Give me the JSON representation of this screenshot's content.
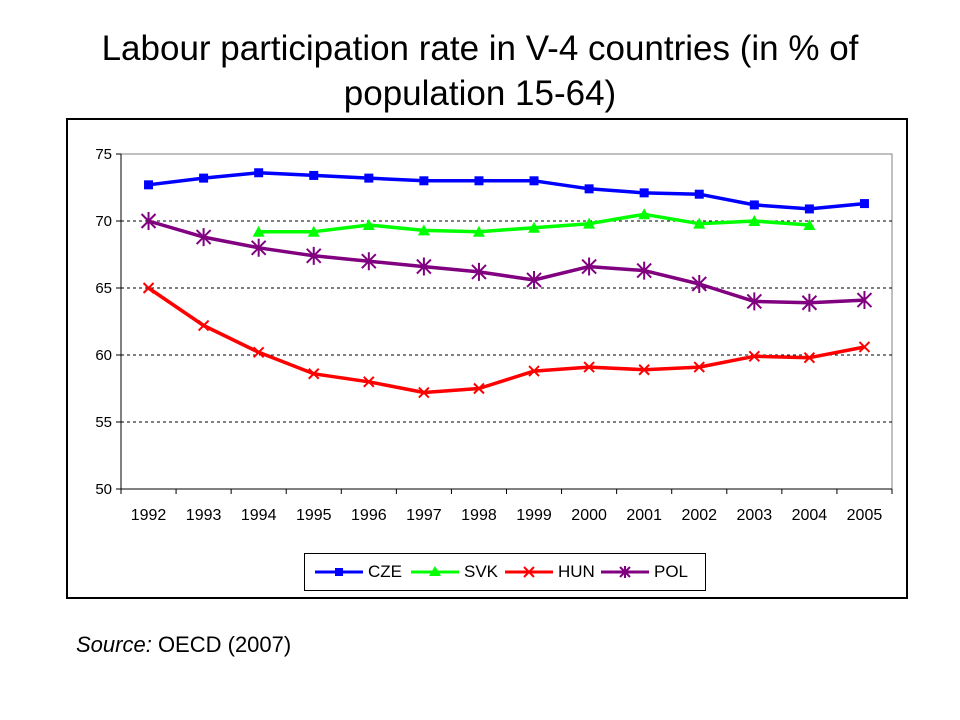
{
  "title": "Labour participation rate in V-4 countries (in % of population 15-64)",
  "source": {
    "label": "Source:",
    "text": " OECD (2007)"
  },
  "chart_data": {
    "type": "line",
    "title": "Labour participation rate in V-4 countries (in % of population 15-64)",
    "xlabel": "",
    "ylabel": "",
    "categories": [
      "1992",
      "1993",
      "1994",
      "1995",
      "1996",
      "1997",
      "1998",
      "1999",
      "2000",
      "2001",
      "2002",
      "2003",
      "2004",
      "2005"
    ],
    "ylim": [
      50,
      75
    ],
    "yticks": [
      50,
      55,
      60,
      65,
      70,
      75
    ],
    "grid": "horizontal dashed",
    "legend_position": "bottom",
    "series": [
      {
        "name": "CZE",
        "color": "#0000ff",
        "marker": "square",
        "values": [
          72.7,
          73.2,
          73.6,
          73.4,
          73.2,
          73.0,
          73.0,
          73.0,
          72.4,
          72.1,
          72.0,
          71.2,
          70.9,
          71.3
        ]
      },
      {
        "name": "SVK",
        "color": "#00ff00",
        "marker": "triangle",
        "values": [
          null,
          null,
          69.2,
          69.2,
          69.7,
          69.3,
          69.2,
          69.5,
          69.8,
          70.5,
          69.8,
          70.0,
          69.7,
          null
        ]
      },
      {
        "name": "HUN",
        "color": "#ff0000",
        "marker": "x",
        "values": [
          65.0,
          62.2,
          60.2,
          58.6,
          58.0,
          57.2,
          57.5,
          58.8,
          59.1,
          58.9,
          59.1,
          59.9,
          59.8,
          60.6
        ]
      },
      {
        "name": "POL",
        "color": "#800080",
        "marker": "star",
        "values": [
          70.0,
          68.8,
          68.0,
          67.4,
          67.0,
          66.6,
          66.2,
          65.6,
          66.6,
          66.3,
          65.3,
          64.0,
          63.9,
          64.1
        ]
      }
    ]
  }
}
